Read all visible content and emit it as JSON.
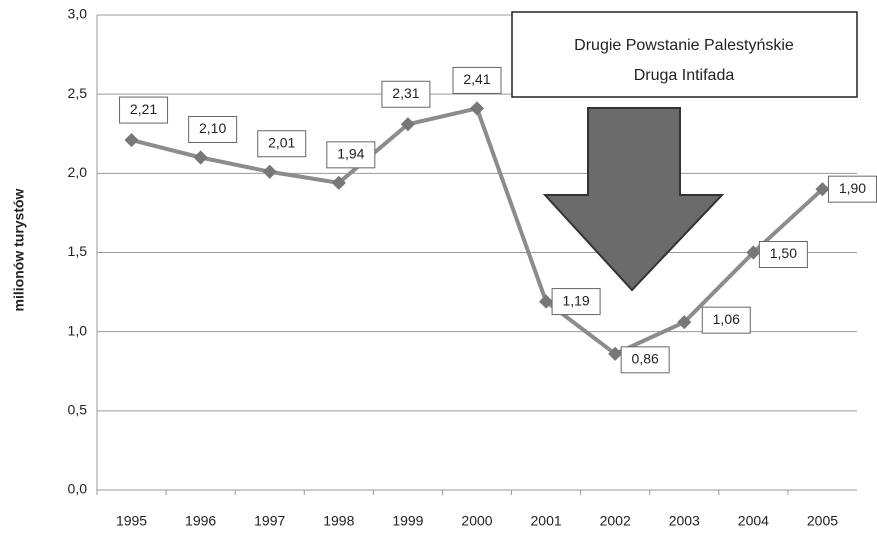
{
  "chart_data": {
    "type": "line",
    "y_axis_label": "milionów turystów",
    "annotation": [
      "Drugie Powstanie Palestyńskie",
      "Druga Intifada"
    ],
    "categories": [
      "1995",
      "1996",
      "1997",
      "1998",
      "1999",
      "2000",
      "2001",
      "2002",
      "2003",
      "2004",
      "2005"
    ],
    "series": [
      {
        "color": "#8c8c8c",
        "values": [
          2.21,
          2.1,
          2.01,
          1.94,
          2.31,
          2.41,
          1.19,
          0.86,
          1.06,
          1.5,
          1.9
        ],
        "value_labels": [
          "2,21",
          "2,10",
          "2,01",
          "1,94",
          "2,31",
          "2,41",
          "1,19",
          "0,86",
          "1,06",
          "1,50",
          "1,90"
        ]
      }
    ],
    "ylim": [
      0,
      3
    ],
    "yticks": [
      {
        "value": 0,
        "label": "0,0"
      },
      {
        "value": 0.5,
        "label": "0,5"
      },
      {
        "value": 1,
        "label": "1,0"
      },
      {
        "value": 1.5,
        "label": "1,5"
      },
      {
        "value": 2,
        "label": "2,0"
      },
      {
        "value": 2.5,
        "label": "2,5"
      },
      {
        "value": 3,
        "label": "3,0"
      }
    ],
    "grid": true
  }
}
